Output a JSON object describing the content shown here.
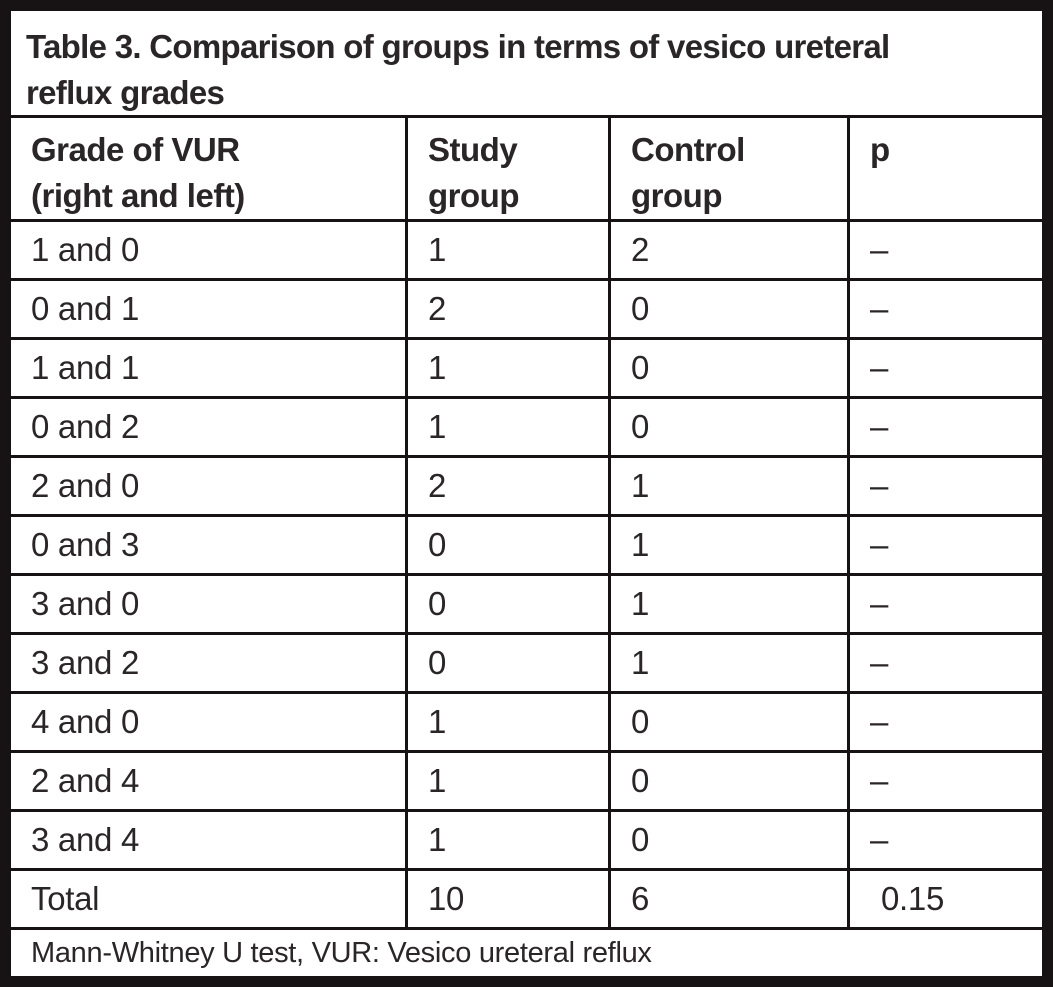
{
  "colors": {
    "text": "#2a2526",
    "border": "#171314",
    "background": "#ffffff"
  },
  "table": {
    "title_line1": "Table 3. Comparison of groups in terms of vesico ureteral",
    "title_line2": "reflux grades",
    "title_full": "Table 3. Comparison of groups in terms of vesico ureteral reflux grades",
    "headers": [
      {
        "line1": "Grade of VUR",
        "line2": "(right and left)"
      },
      {
        "line1": "Study",
        "line2": "group"
      },
      {
        "line1": "Control",
        "line2": "group"
      },
      {
        "line1": "p",
        "line2": ""
      }
    ],
    "rows": [
      {
        "grade": "1 and 0",
        "study": "1",
        "control": "2",
        "p": "–"
      },
      {
        "grade": "0 and 1",
        "study": "2",
        "control": "0",
        "p": "–"
      },
      {
        "grade": "1 and 1",
        "study": "1",
        "control": "0",
        "p": "–"
      },
      {
        "grade": "0 and 2",
        "study": "1",
        "control": "0",
        "p": "–"
      },
      {
        "grade": "2 and 0",
        "study": "2",
        "control": "1",
        "p": "–"
      },
      {
        "grade": "0 and 3",
        "study": "0",
        "control": "1",
        "p": "–"
      },
      {
        "grade": "3 and 0",
        "study": "0",
        "control": "1",
        "p": "–"
      },
      {
        "grade": "3 and 2",
        "study": "0",
        "control": "1",
        "p": "–"
      },
      {
        "grade": "4 and 0",
        "study": "1",
        "control": "0",
        "p": "–"
      },
      {
        "grade": "2 and 4",
        "study": "1",
        "control": "0",
        "p": "–"
      },
      {
        "grade": "3 and 4",
        "study": "1",
        "control": "0",
        "p": "–"
      },
      {
        "grade": "Total",
        "study": "10",
        "control": "6",
        "p": "0.15"
      }
    ],
    "footnote": "Mann-Whitney U test, VUR: Vesico ureteral reflux"
  }
}
